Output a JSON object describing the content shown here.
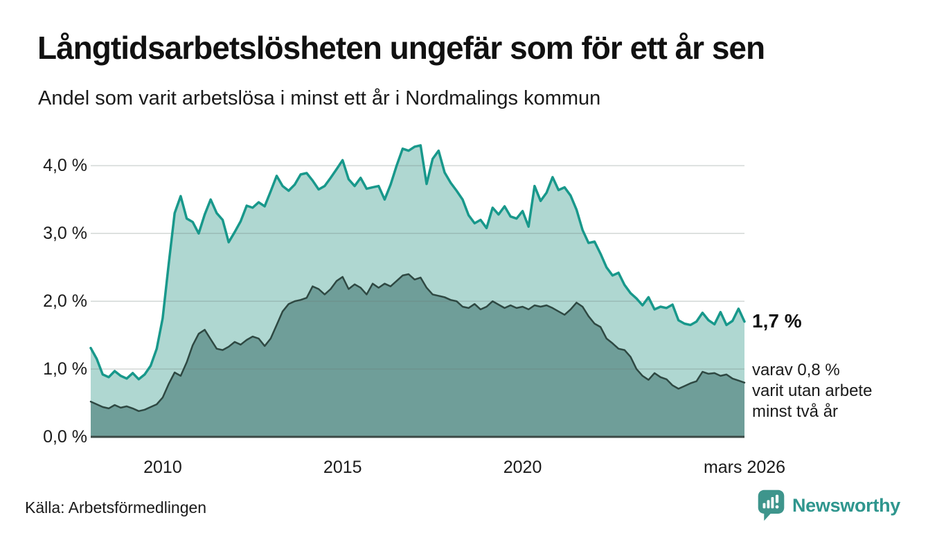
{
  "header": {
    "title": "Långtidsarbetslösheten ungefär som för ett år sen",
    "subtitle": "Andel som varit arbetslösa i minst ett år i Nordmalings kommun"
  },
  "chart_data": {
    "type": "area",
    "title": "Långtidsarbetslösheten ungefär som för ett år sen",
    "subtitle": "Andel som varit arbetslösa i minst ett år i Nordmalings kommun",
    "unit": "%",
    "x_start": 2008.0,
    "x_step": 0.16667,
    "xlim": [
      2008.0,
      2026.1667
    ],
    "ylim": [
      0,
      4.35
    ],
    "grid": true,
    "colors": {
      "line_total": "#18988B",
      "fill_total": "#AFD7D1",
      "line_two_years": "#2E4842",
      "fill_two_years": "#6F9E99",
      "gridline": "#6B7A78",
      "baseline": "#3C4945",
      "brand_teal": "#2F968E"
    },
    "series": [
      {
        "name": "Andel arbetslösa minst ett år",
        "values": [
          1.31,
          1.15,
          0.92,
          0.88,
          0.97,
          0.9,
          0.86,
          0.94,
          0.85,
          0.92,
          1.05,
          1.3,
          1.75,
          2.55,
          3.3,
          3.55,
          3.22,
          3.17,
          3.0,
          3.28,
          3.5,
          3.3,
          3.2,
          2.87,
          3.02,
          3.18,
          3.41,
          3.38,
          3.46,
          3.4,
          3.62,
          3.85,
          3.7,
          3.63,
          3.72,
          3.87,
          3.89,
          3.78,
          3.65,
          3.7,
          3.82,
          3.95,
          4.08,
          3.8,
          3.7,
          3.82,
          3.66,
          3.68,
          3.7,
          3.5,
          3.72,
          4.0,
          4.25,
          4.22,
          4.28,
          4.3,
          3.73,
          4.1,
          4.22,
          3.9,
          3.75,
          3.63,
          3.5,
          3.27,
          3.15,
          3.2,
          3.08,
          3.38,
          3.28,
          3.4,
          3.25,
          3.22,
          3.33,
          3.1,
          3.7,
          3.48,
          3.6,
          3.83,
          3.64,
          3.68,
          3.56,
          3.35,
          3.05,
          2.86,
          2.88,
          2.7,
          2.5,
          2.38,
          2.42,
          2.24,
          2.12,
          2.04,
          1.94,
          2.06,
          1.88,
          1.92,
          1.9,
          1.95,
          1.72,
          1.67,
          1.65,
          1.7,
          1.83,
          1.72,
          1.66,
          1.84,
          1.65,
          1.71,
          1.89,
          1.7
        ]
      },
      {
        "name": "Andel arbetslösa minst två år",
        "values": [
          0.52,
          0.48,
          0.44,
          0.42,
          0.47,
          0.43,
          0.45,
          0.42,
          0.38,
          0.4,
          0.44,
          0.48,
          0.58,
          0.78,
          0.95,
          0.9,
          1.1,
          1.35,
          1.52,
          1.58,
          1.44,
          1.3,
          1.28,
          1.33,
          1.4,
          1.36,
          1.43,
          1.48,
          1.45,
          1.34,
          1.45,
          1.65,
          1.85,
          1.96,
          2.0,
          2.02,
          2.05,
          2.22,
          2.18,
          2.1,
          2.18,
          2.3,
          2.36,
          2.18,
          2.25,
          2.2,
          2.1,
          2.26,
          2.2,
          2.26,
          2.22,
          2.3,
          2.38,
          2.4,
          2.32,
          2.35,
          2.2,
          2.1,
          2.08,
          2.06,
          2.02,
          2.0,
          1.92,
          1.9,
          1.96,
          1.88,
          1.92,
          2.0,
          1.95,
          1.9,
          1.94,
          1.9,
          1.92,
          1.88,
          1.94,
          1.92,
          1.94,
          1.9,
          1.85,
          1.8,
          1.88,
          1.98,
          1.92,
          1.78,
          1.67,
          1.62,
          1.45,
          1.38,
          1.3,
          1.28,
          1.18,
          1.0,
          0.9,
          0.84,
          0.94,
          0.88,
          0.85,
          0.76,
          0.71,
          0.75,
          0.79,
          0.82,
          0.96,
          0.93,
          0.94,
          0.9,
          0.92,
          0.86,
          0.83,
          0.8
        ]
      }
    ],
    "y_ticks": [
      {
        "value": 0,
        "label": "0,0 %"
      },
      {
        "value": 1,
        "label": "1,0 %"
      },
      {
        "value": 2,
        "label": "2,0 %"
      },
      {
        "value": 3,
        "label": "3,0 %"
      },
      {
        "value": 4,
        "label": "4,0 %"
      }
    ],
    "x_ticks": [
      {
        "t": 2010,
        "label": "2010"
      },
      {
        "t": 2015,
        "label": "2015"
      },
      {
        "t": 2020,
        "label": "2020"
      },
      {
        "t": 2026.1667,
        "label": "mars 2026"
      }
    ],
    "annotations": {
      "end_value_main": "1,7 %",
      "end_value_main_number": 1.7,
      "end_note_lines": [
        "varav 0,8 %",
        "varit utan arbete",
        "minst två år"
      ],
      "end_value_two_years_number": 0.8
    },
    "legend_position": "none"
  },
  "footer": {
    "source": "Källa: Arbetsförmedlingen",
    "brand": "Newsworthy"
  }
}
